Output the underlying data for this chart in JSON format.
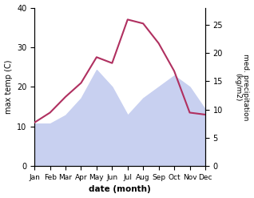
{
  "months": [
    "Jan",
    "Feb",
    "Mar",
    "Apr",
    "May",
    "Jun",
    "Jul",
    "Aug",
    "Sep",
    "Oct",
    "Nov",
    "Dec"
  ],
  "month_positions": [
    0,
    1,
    2,
    3,
    4,
    5,
    6,
    7,
    8,
    9,
    10,
    11
  ],
  "max_temp": [
    11.0,
    13.5,
    17.5,
    21.0,
    27.5,
    26.0,
    37.0,
    36.0,
    31.0,
    24.0,
    13.5,
    13.0
  ],
  "precipitation": [
    7.5,
    7.5,
    9.0,
    12.0,
    17.0,
    14.0,
    9.0,
    12.0,
    14.0,
    16.0,
    14.0,
    10.0
  ],
  "temp_color": "#b03060",
  "precip_fill_color": "#c8d0f0",
  "temp_ylim": [
    0,
    40
  ],
  "precip_ylim": [
    0,
    28
  ],
  "temp_yticks": [
    0,
    10,
    20,
    30,
    40
  ],
  "precip_yticks": [
    0,
    5,
    10,
    15,
    20,
    25
  ],
  "ylabel_left": "max temp (C)",
  "ylabel_right": "med. precipitation\n(kg/m2)",
  "xlabel": "date (month)",
  "background_color": "#ffffff"
}
